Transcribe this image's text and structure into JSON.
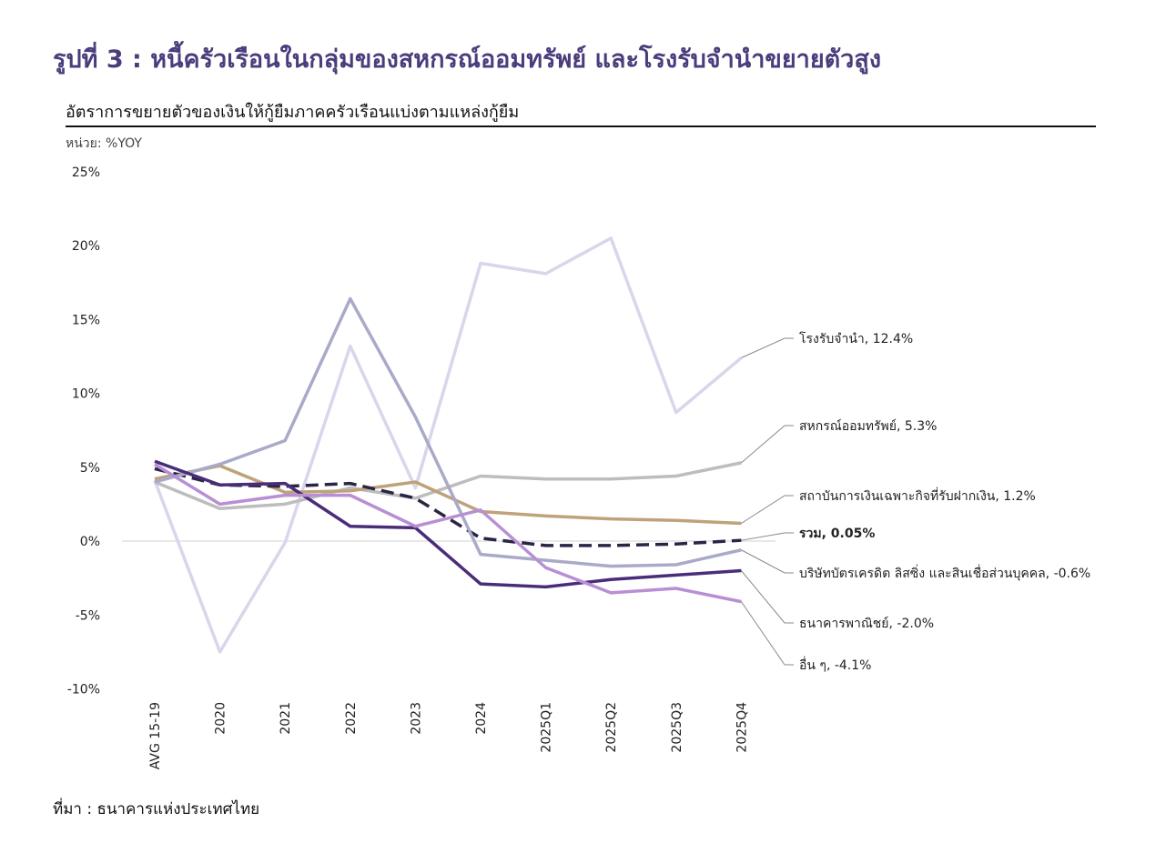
{
  "title": "รูปที่ 3 : หนี้ครัวเรือนในกลุ่มของสหกรณ์ออมทรัพย์ และโรงรับจำนำขยายตัวสูง",
  "source": "ที่มา : ธนาคารแห่งประเทศไทย",
  "chart_data": {
    "type": "line",
    "title": "อัตราการขยายตัวของเงินให้กู้ยืมภาคครัวเรือนแบ่งตามแหล่งกู้ยืม",
    "unit_label": "หน่วย: %YOY",
    "xlabel": "",
    "ylabel": "%YOY",
    "ylim": [
      -10,
      25
    ],
    "yticks": [
      "25%",
      "20%",
      "15%",
      "10%",
      "5%",
      "0%",
      "-5%",
      "-10%"
    ],
    "ytick_values": [
      25,
      20,
      15,
      10,
      5,
      0,
      -5,
      -10
    ],
    "categories": [
      "AVG 15-19",
      "2020",
      "2021",
      "2022",
      "2023",
      "2024",
      "2025Q1",
      "2025Q2",
      "2025Q3",
      "2025Q4"
    ],
    "series": [
      {
        "name": "โรงรับจำนำ",
        "label": "โรงรับจำนำ, 12.4%",
        "color": "#d8d6ea",
        "dashed": false,
        "bold": false,
        "values": [
          4.1,
          -7.5,
          -0.1,
          13.2,
          3.6,
          18.8,
          18.1,
          20.5,
          8.7,
          12.4
        ]
      },
      {
        "name": "สหกรณ์ออมทรัพย์",
        "label": "สหกรณ์ออมทรัพย์, 5.3%",
        "color": "#bdbdbd",
        "dashed": false,
        "bold": false,
        "values": [
          4.0,
          2.2,
          2.5,
          3.6,
          2.9,
          4.4,
          4.2,
          4.2,
          4.4,
          5.3
        ]
      },
      {
        "name": "สถาบันการเงินเฉพาะกิจที่รับฝากเงิน",
        "label": "สถาบันการเงินเฉพาะกิจที่รับฝากเงิน, 1.2%",
        "color": "#bfa27a",
        "dashed": false,
        "bold": false,
        "values": [
          4.2,
          5.1,
          3.3,
          3.4,
          4.0,
          2.0,
          1.7,
          1.5,
          1.4,
          1.2
        ]
      },
      {
        "name": "รวม",
        "label": "รวม, 0.05%",
        "color": "#2b2545",
        "dashed": true,
        "bold": true,
        "values": [
          4.9,
          3.8,
          3.7,
          3.9,
          2.9,
          0.2,
          -0.3,
          -0.3,
          -0.2,
          0.05
        ]
      },
      {
        "name": "บริษัทบัตรเครดิต ลิสซิ่ง และสินเชื่อส่วนบุคคล",
        "label": "บริษัทบัตรเครดิต ลิสซิ่ง และสินเชื่อส่วนบุคคล, -0.6%",
        "color": "#a9aac8",
        "dashed": false,
        "bold": false,
        "values": [
          4.0,
          5.2,
          6.8,
          16.4,
          8.4,
          -0.9,
          -1.3,
          -1.7,
          -1.6,
          -0.6
        ]
      },
      {
        "name": "ธนาคารพาณิชย์",
        "label": "ธนาคารพาณิชย์, -2.0%",
        "color": "#4a2d7a",
        "dashed": false,
        "bold": false,
        "values": [
          5.4,
          3.8,
          3.9,
          1.0,
          0.9,
          -2.9,
          -3.1,
          -2.6,
          -2.3,
          -2.0
        ]
      },
      {
        "name": "อื่น ๆ",
        "label": "อื่น ๆ, -4.1%",
        "color": "#b98fd4",
        "dashed": false,
        "bold": false,
        "values": [
          5.2,
          2.5,
          3.1,
          3.1,
          1.0,
          2.1,
          -1.8,
          -3.5,
          -3.2,
          -4.1
        ]
      }
    ],
    "grid": false,
    "legend": "right, direct labels"
  }
}
